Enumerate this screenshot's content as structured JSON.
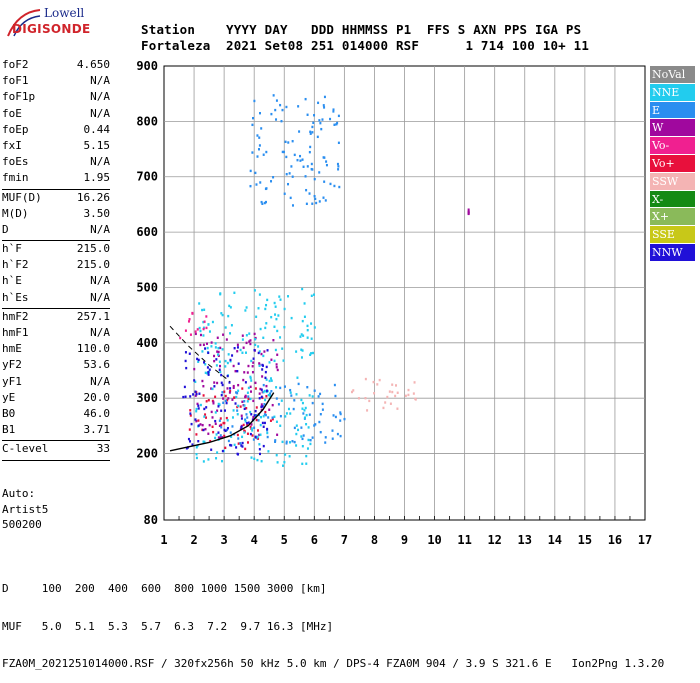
{
  "logo": {
    "line1": "Lowell",
    "line2": "DIGISONDE"
  },
  "header": {
    "row1": "Station    YYYY DAY   DDD HHMMSS P1  FFS S AXN PPS IGA PS",
    "row2": "Fortaleza  2021 Set08 251 014000 RSF      1 714 100 10+ 11"
  },
  "params": {
    "groups": [
      [
        {
          "label": "foF2",
          "value": "4.650"
        },
        {
          "label": "foF1",
          "value": "N/A"
        },
        {
          "label": "foF1p",
          "value": "N/A"
        },
        {
          "label": "foE",
          "value": "N/A"
        },
        {
          "label": "foEp",
          "value": "0.44"
        },
        {
          "label": "fxI",
          "value": "5.15"
        },
        {
          "label": "foEs",
          "value": "N/A"
        },
        {
          "label": "fmin",
          "value": "1.95"
        }
      ],
      [
        {
          "label": "MUF(D)",
          "value": "16.26"
        },
        {
          "label": "M(D)",
          "value": "3.50"
        },
        {
          "label": "D",
          "value": "N/A"
        }
      ],
      [
        {
          "label": "h`F",
          "value": "215.0"
        },
        {
          "label": "h`F2",
          "value": "215.0"
        },
        {
          "label": "h`E",
          "value": "N/A"
        },
        {
          "label": "h`Es",
          "value": "N/A"
        }
      ],
      [
        {
          "label": "hmF2",
          "value": "257.1"
        },
        {
          "label": "hmF1",
          "value": "N/A"
        },
        {
          "label": "hmE",
          "value": "110.0"
        },
        {
          "label": "yF2",
          "value": "53.6"
        },
        {
          "label": "yF1",
          "value": "N/A"
        },
        {
          "label": "yE",
          "value": "20.0"
        },
        {
          "label": "B0",
          "value": "46.0"
        },
        {
          "label": "B1",
          "value": "3.71"
        }
      ],
      [
        {
          "label": "C-level",
          "value": "33"
        }
      ]
    ]
  },
  "auto": {
    "line1": "Auto:",
    "line2": "Artist5",
    "line3": "500200"
  },
  "legend": [
    {
      "label": "NoVal",
      "color": "#8a8a8a"
    },
    {
      "label": "NNE",
      "color": "#22ccee"
    },
    {
      "label": "E",
      "color": "#2a8ef0"
    },
    {
      "label": "W",
      "color": "#a0089e"
    },
    {
      "label": "Vo-",
      "color": "#f02090"
    },
    {
      "label": "Vo+",
      "color": "#e8103c"
    },
    {
      "label": "SSW",
      "color": "#f4b4b4"
    },
    {
      "label": "X-",
      "color": "#148a14"
    },
    {
      "label": "X+",
      "color": "#8aba5a"
    },
    {
      "label": "SSE",
      "color": "#c8c818"
    },
    {
      "label": "NNW",
      "color": "#2010d8"
    }
  ],
  "bottom": {
    "line1": "D     100  200  400  600  800 1000 1500 3000 [km]",
    "line2": "MUF   5.0  5.1  5.3  5.7  6.3  7.2  9.7 16.3 [MHz]",
    "line3": "FZA0M_2021251014000.RSF / 320fx256h 50 kHz 5.0 km / DPS-4 FZA0M 904 / 3.9 S 321.6 E   Ion2Png 1.3.20"
  },
  "chart_data": {
    "type": "scatter",
    "xlim": [
      1,
      17
    ],
    "ylim": [
      80,
      900
    ],
    "xticks": [
      "1",
      "2",
      "3",
      "4",
      "5",
      "6",
      "7",
      "8",
      "9",
      "10",
      "11",
      "12",
      "13",
      "14",
      "15",
      "16",
      "17"
    ],
    "yticks": [
      "80",
      "200",
      "300",
      "400",
      "500",
      "600",
      "700",
      "800",
      "900"
    ],
    "grid": true,
    "legend_position": "right",
    "trace_profile": {
      "x": [
        1.2,
        1.8,
        2.5,
        3.2,
        3.8,
        4.3,
        4.65
      ],
      "y": [
        205,
        212,
        220,
        232,
        250,
        280,
        310
      ]
    },
    "dashed_profile": {
      "x": [
        1.2,
        1.8,
        2.5,
        3.2
      ],
      "y": [
        430,
        395,
        360,
        330
      ]
    },
    "echo_clusters": [
      {
        "series": "Vo+",
        "x": [
          1.8,
          4.6
        ],
        "y": [
          210,
          320
        ]
      },
      {
        "series": "W",
        "x": [
          1.9,
          4.8
        ],
        "y": [
          230,
          420
        ]
      },
      {
        "series": "E",
        "x": [
          2.8,
          7.0
        ],
        "y": [
          220,
          330
        ]
      },
      {
        "series": "NNE",
        "x": [
          2.0,
          6.0
        ],
        "y": [
          180,
          500
        ]
      },
      {
        "series": "SSW",
        "x": [
          7.2,
          9.5
        ],
        "y": [
          280,
          340
        ]
      },
      {
        "series": "NNW",
        "x": [
          1.6,
          4.5
        ],
        "y": [
          200,
          400
        ]
      },
      {
        "series": "E",
        "x": [
          3.8,
          6.8
        ],
        "y": [
          650,
          850
        ]
      },
      {
        "series": "Vo-",
        "x": [
          1.5,
          2.6
        ],
        "y": [
          410,
          460
        ]
      },
      {
        "series": "W",
        "x": [
          11.1,
          11.1
        ],
        "y": [
          635,
          645
        ]
      }
    ]
  }
}
